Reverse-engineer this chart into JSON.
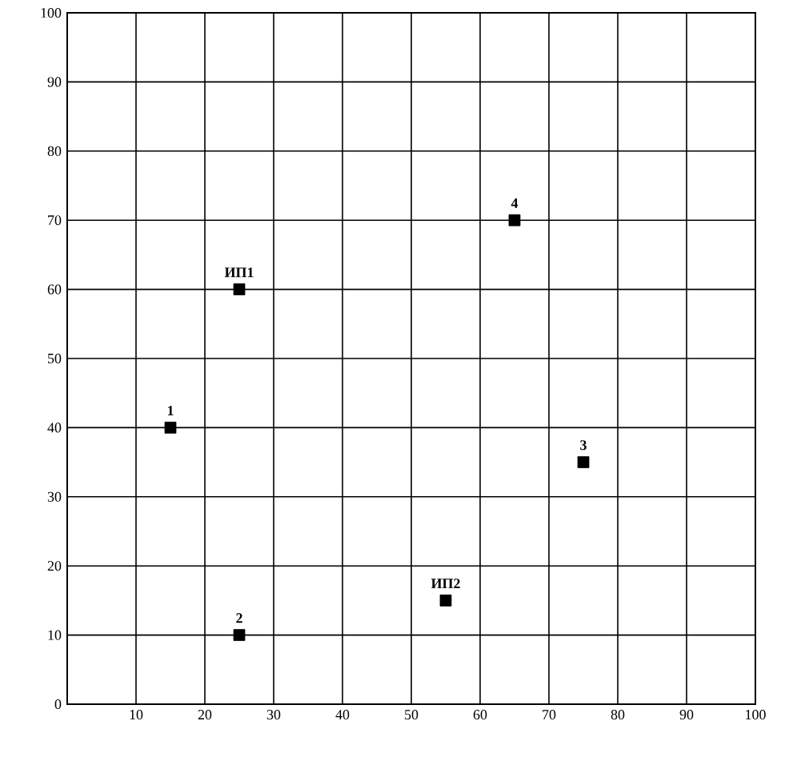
{
  "chart_data": {
    "type": "scatter",
    "x": [
      15,
      25,
      25,
      55,
      65,
      75
    ],
    "values": [
      40,
      10,
      60,
      15,
      70,
      35
    ],
    "color": "#000000",
    "marker": "square",
    "xlim": [
      0,
      100
    ],
    "ylim": [
      0,
      100
    ],
    "xticks": [
      10,
      20,
      30,
      40,
      50,
      60,
      70,
      80,
      90,
      100
    ],
    "yticks": [
      0,
      10,
      20,
      30,
      40,
      50,
      60,
      70,
      80,
      90,
      100
    ],
    "grid": true,
    "annotations": [
      {
        "text": "1",
        "x": 15,
        "y": 40
      },
      {
        "text": "2",
        "x": 25,
        "y": 10
      },
      {
        "text": "ИП1",
        "x": 25,
        "y": 60
      },
      {
        "text": "ИП2",
        "x": 55,
        "y": 15
      },
      {
        "text": "4",
        "x": 65,
        "y": 70
      },
      {
        "text": "3",
        "x": 75,
        "y": 35
      }
    ]
  }
}
